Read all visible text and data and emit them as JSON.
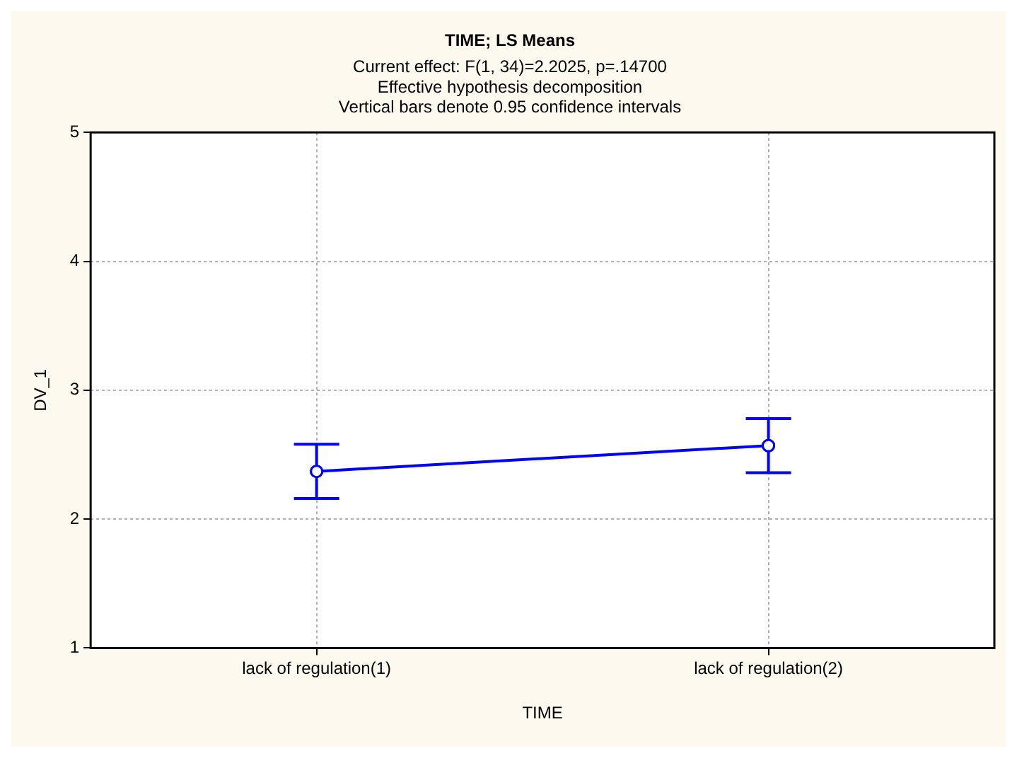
{
  "chart_data": {
    "type": "line",
    "title": "TIME; LS Means",
    "subtitle": [
      "Current effect: F(1, 34)=2.2025, p=.14700",
      "Effective hypothesis decomposition",
      "Vertical bars denote 0.95 confidence intervals"
    ],
    "xlabel": "TIME",
    "ylabel": "DV_1",
    "categories": [
      "lack of regulation(1)",
      "lack of regulation(2)"
    ],
    "series": [
      {
        "color": "#0000ff",
        "values": [
          2.37,
          2.57
        ],
        "errors": [
          0.21,
          0.21
        ]
      }
    ],
    "ylim": [
      1,
      5
    ],
    "yticks": [
      1,
      2,
      3,
      4,
      5
    ],
    "grid": true,
    "legend": false,
    "marker": "circle",
    "line_style": "solid"
  }
}
